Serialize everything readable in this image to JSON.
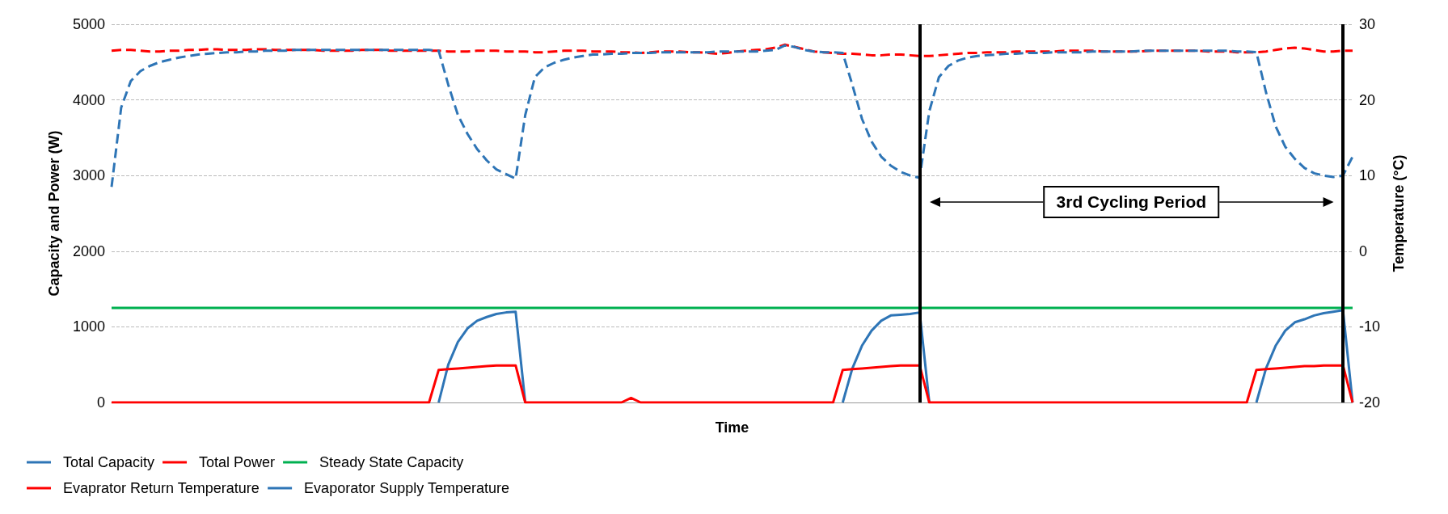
{
  "chart_data": {
    "type": "line",
    "xlabel": "Time",
    "ylabel": "Capacity and Power (W)",
    "y2label": "Temperature (°C)",
    "categories": [
      null,
      null,
      null,
      null,
      null,
      null,
      null,
      null,
      null,
      null,
      null,
      null,
      null,
      null,
      null,
      null,
      null,
      null,
      null,
      null,
      null,
      null,
      null,
      null,
      null,
      null,
      null,
      null,
      null,
      null,
      null,
      null,
      null,
      null,
      null,
      null,
      null,
      null,
      null,
      null,
      null,
      null,
      null,
      null,
      null,
      null,
      null,
      null,
      null,
      null,
      null,
      null,
      null,
      null,
      null,
      null,
      null,
      null,
      null,
      null,
      null,
      null,
      null,
      null,
      null,
      null,
      null,
      null,
      null,
      null,
      null,
      null,
      null,
      null,
      null,
      null,
      null,
      null,
      null,
      null,
      null,
      null,
      null,
      null,
      null,
      null,
      null,
      null,
      null,
      null,
      null,
      null,
      null,
      null,
      null,
      null,
      null,
      null,
      null,
      null,
      null,
      null,
      null,
      null,
      null,
      null,
      null,
      null,
      null,
      null,
      null,
      null,
      null,
      null,
      null,
      null,
      null,
      null,
      null,
      null,
      null,
      null,
      null,
      null,
      null,
      null,
      null,
      null,
      null,
      null
    ],
    "ylim": [
      0,
      5000
    ],
    "yticks": [
      0,
      1000,
      2000,
      3000,
      4000,
      5000
    ],
    "y2lim": [
      -20,
      30
    ],
    "y2ticks": [
      -20,
      -10,
      0,
      10,
      20,
      30
    ],
    "grid": "y",
    "legend": "bottom",
    "series": [
      {
        "name": "Total Capacity",
        "color": "#2e75b6",
        "line_style": "solid",
        "values": [
          null,
          null,
          null,
          null,
          null,
          null,
          null,
          null,
          null,
          null,
          null,
          null,
          null,
          null,
          null,
          null,
          null,
          null,
          null,
          null,
          null,
          null,
          null,
          null,
          null,
          null,
          null,
          null,
          null,
          null,
          null,
          null,
          null,
          null,
          0,
          500,
          800,
          980,
          1080,
          1130,
          1170,
          1190,
          1200,
          0,
          null,
          null,
          null,
          null,
          null,
          null,
          null,
          null,
          null,
          null,
          null,
          null,
          null,
          null,
          null,
          null,
          null,
          null,
          null,
          null,
          null,
          null,
          null,
          null,
          null,
          null,
          null,
          null,
          null,
          null,
          null,
          null,
          0,
          450,
          750,
          950,
          1080,
          1150,
          1160,
          1170,
          1190,
          0,
          null,
          null,
          null,
          null,
          null,
          null,
          null,
          null,
          null,
          null,
          null,
          null,
          null,
          null,
          null,
          null,
          null,
          null,
          null,
          null,
          null,
          null,
          null,
          null,
          null,
          null,
          null,
          null,
          null,
          null,
          null,
          null,
          null,
          0,
          450,
          750,
          950,
          1060,
          1100,
          1150,
          1180,
          1200,
          1220,
          0
        ]
      },
      {
        "name": "Total Power",
        "color": "#ff0000",
        "line_style": "solid",
        "values": [
          0,
          0,
          0,
          0,
          0,
          0,
          0,
          0,
          0,
          0,
          0,
          0,
          0,
          0,
          0,
          0,
          0,
          0,
          0,
          0,
          0,
          0,
          0,
          0,
          0,
          0,
          0,
          0,
          0,
          0,
          0,
          0,
          0,
          0,
          430,
          440,
          450,
          460,
          470,
          480,
          490,
          490,
          490,
          0,
          0,
          0,
          0,
          0,
          0,
          0,
          0,
          0,
          0,
          0,
          60,
          0,
          0,
          0,
          0,
          0,
          0,
          0,
          0,
          0,
          0,
          0,
          0,
          0,
          0,
          0,
          0,
          0,
          0,
          0,
          0,
          0,
          430,
          440,
          450,
          460,
          470,
          480,
          490,
          490,
          490,
          0,
          0,
          0,
          0,
          0,
          0,
          0,
          0,
          0,
          0,
          0,
          0,
          0,
          0,
          0,
          0,
          0,
          0,
          0,
          0,
          0,
          0,
          0,
          0,
          0,
          0,
          0,
          0,
          0,
          0,
          0,
          0,
          0,
          0,
          430,
          440,
          450,
          460,
          470,
          480,
          480,
          490,
          490,
          490,
          0
        ]
      },
      {
        "name": "Steady State Capacity",
        "color": "#00b050",
        "line_style": "solid",
        "values": [
          1250,
          1250,
          1250,
          1250,
          1250,
          1250,
          1250,
          1250,
          1250,
          1250,
          1250,
          1250,
          1250,
          1250,
          1250,
          1250,
          1250,
          1250,
          1250,
          1250,
          1250,
          1250,
          1250,
          1250,
          1250,
          1250,
          1250,
          1250,
          1250,
          1250,
          1250,
          1250,
          1250,
          1250,
          1250,
          1250,
          1250,
          1250,
          1250,
          1250,
          1250,
          1250,
          1250,
          1250,
          1250,
          1250,
          1250,
          1250,
          1250,
          1250,
          1250,
          1250,
          1250,
          1250,
          1250,
          1250,
          1250,
          1250,
          1250,
          1250,
          1250,
          1250,
          1250,
          1250,
          1250,
          1250,
          1250,
          1250,
          1250,
          1250,
          1250,
          1250,
          1250,
          1250,
          1250,
          1250,
          1250,
          1250,
          1250,
          1250,
          1250,
          1250,
          1250,
          1250,
          1250,
          1250,
          1250,
          1250,
          1250,
          1250,
          1250,
          1250,
          1250,
          1250,
          1250,
          1250,
          1250,
          1250,
          1250,
          1250,
          1250,
          1250,
          1250,
          1250,
          1250,
          1250,
          1250,
          1250,
          1250,
          1250,
          1250,
          1250,
          1250,
          1250,
          1250,
          1250,
          1250,
          1250,
          1250,
          1250,
          1250,
          1250,
          1250,
          1250,
          1250,
          1250,
          1250,
          1250,
          1250,
          1250
        ]
      },
      {
        "name": "Evaprator Return Temperature",
        "color": "#ff0000",
        "line_style": "dashed",
        "axis": "y2",
        "values": [
          26.5,
          26.6,
          26.6,
          26.5,
          26.4,
          26.4,
          26.5,
          26.5,
          26.6,
          26.6,
          26.7,
          26.7,
          26.6,
          26.6,
          26.6,
          26.7,
          26.7,
          26.6,
          26.6,
          26.6,
          26.6,
          26.6,
          26.5,
          26.5,
          26.5,
          26.5,
          26.6,
          26.6,
          26.6,
          26.5,
          26.5,
          26.5,
          26.5,
          26.5,
          26.5,
          26.4,
          26.4,
          26.4,
          26.5,
          26.5,
          26.5,
          26.4,
          26.4,
          26.4,
          26.3,
          26.3,
          26.4,
          26.5,
          26.5,
          26.5,
          26.4,
          26.4,
          26.4,
          26.3,
          26.3,
          26.2,
          26.3,
          26.4,
          26.4,
          26.4,
          26.3,
          26.3,
          26.2,
          26.1,
          26.2,
          26.4,
          26.5,
          26.6,
          26.7,
          26.9,
          27.3,
          27.0,
          26.7,
          26.4,
          26.3,
          26.2,
          26.1,
          26.1,
          26.0,
          25.9,
          25.9,
          26.0,
          26.0,
          25.9,
          25.8,
          25.8,
          25.9,
          26.0,
          26.1,
          26.2,
          26.2,
          26.3,
          26.3,
          26.3,
          26.4,
          26.4,
          26.4,
          26.4,
          26.4,
          26.5,
          26.5,
          26.5,
          26.5,
          26.4,
          26.4,
          26.4,
          26.4,
          26.4,
          26.5,
          26.5,
          26.5,
          26.5,
          26.5,
          26.5,
          26.4,
          26.4,
          26.4,
          26.3,
          26.3,
          26.3,
          26.4,
          26.6,
          26.8,
          26.9,
          26.8,
          26.6,
          26.4,
          26.4,
          26.5,
          26.5
        ]
      },
      {
        "name": "Evaporator Supply Temperature",
        "color": "#2e75b6",
        "line_style": "dashed",
        "axis": "y2",
        "values": [
          8.5,
          19,
          22.5,
          23.8,
          24.5,
          25,
          25.3,
          25.6,
          25.8,
          26,
          26.1,
          26.2,
          26.3,
          26.3,
          26.4,
          26.4,
          26.5,
          26.5,
          26.5,
          26.6,
          26.6,
          26.6,
          26.6,
          26.6,
          26.6,
          26.6,
          26.6,
          26.6,
          26.6,
          26.6,
          26.6,
          26.6,
          26.6,
          26.6,
          26.5,
          22,
          18,
          15.5,
          13.5,
          12,
          10.8,
          10.2,
          9.6,
          18,
          23,
          24.3,
          24.9,
          25.3,
          25.6,
          25.8,
          26,
          26,
          26.1,
          26.1,
          26.2,
          26.2,
          26.2,
          26.3,
          26.3,
          26.3,
          26.3,
          26.3,
          26.3,
          26.4,
          26.4,
          26.4,
          26.4,
          26.4,
          26.5,
          26.6,
          27.2,
          27,
          26.6,
          26.4,
          26.3,
          26.3,
          26.2,
          22,
          17.5,
          14.5,
          12.5,
          11.3,
          10.5,
          10,
          9.7,
          18.5,
          23,
          24.5,
          25.2,
          25.6,
          25.8,
          25.9,
          26,
          26.1,
          26.1,
          26.2,
          26.2,
          26.2,
          26.3,
          26.3,
          26.3,
          26.3,
          26.4,
          26.4,
          26.4,
          26.4,
          26.4,
          26.5,
          26.5,
          26.5,
          26.5,
          26.5,
          26.5,
          26.5,
          26.5,
          26.5,
          26.5,
          26.4,
          26.4,
          26.3,
          21,
          16.5,
          13.8,
          12.2,
          11,
          10.3,
          10,
          9.8,
          10,
          12.5
        ]
      }
    ],
    "annotations": [
      "3rd Cycling Period"
    ]
  }
}
